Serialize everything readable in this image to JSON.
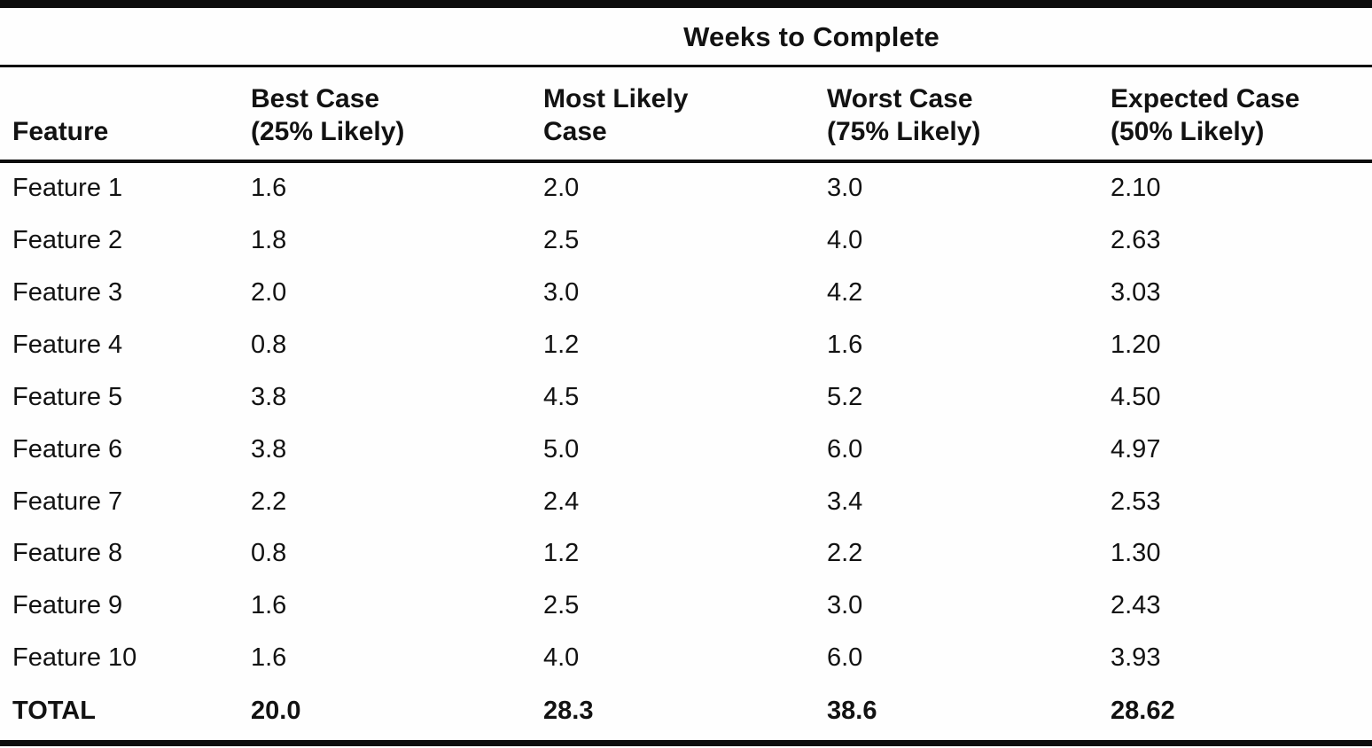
{
  "page": {
    "background_color": "#fefefe",
    "ink_color": "#0d0d0d"
  },
  "table": {
    "title": "Weeks to Complete",
    "headers": {
      "feature": "Feature",
      "best": "Best Case\n(25% Likely)",
      "most_likely": "Most Likely\nCase",
      "worst": "Worst Case\n(75% Likely)",
      "expected": "Expected Case\n(50% Likely)"
    },
    "rows": [
      {
        "label": "Feature 1",
        "best": "1.6",
        "most_likely": "2.0",
        "worst": "3.0",
        "expected": "2.10"
      },
      {
        "label": "Feature 2",
        "best": "1.8",
        "most_likely": "2.5",
        "worst": "4.0",
        "expected": "2.63"
      },
      {
        "label": "Feature 3",
        "best": "2.0",
        "most_likely": "3.0",
        "worst": "4.2",
        "expected": "3.03"
      },
      {
        "label": "Feature 4",
        "best": "0.8",
        "most_likely": "1.2",
        "worst": "1.6",
        "expected": "1.20"
      },
      {
        "label": "Feature 5",
        "best": "3.8",
        "most_likely": "4.5",
        "worst": "5.2",
        "expected": "4.50"
      },
      {
        "label": "Feature 6",
        "best": "3.8",
        "most_likely": "5.0",
        "worst": "6.0",
        "expected": "4.97"
      },
      {
        "label": "Feature 7",
        "best": "2.2",
        "most_likely": "2.4",
        "worst": "3.4",
        "expected": "2.53"
      },
      {
        "label": "Feature 8",
        "best": "0.8",
        "most_likely": "1.2",
        "worst": "2.2",
        "expected": "1.30"
      },
      {
        "label": "Feature 9",
        "best": "1.6",
        "most_likely": "2.5",
        "worst": "3.0",
        "expected": "2.43"
      },
      {
        "label": "Feature 10",
        "best": "1.6",
        "most_likely": "4.0",
        "worst": "6.0",
        "expected": "3.93"
      }
    ],
    "total": {
      "label": "TOTAL",
      "best": "20.0",
      "most_likely": "28.3",
      "worst": "38.6",
      "expected": "28.62"
    }
  },
  "chart_data": {
    "type": "table",
    "title": "Weeks to Complete",
    "columns": [
      "Feature",
      "Best Case (25% Likely)",
      "Most Likely Case",
      "Worst Case (75% Likely)",
      "Expected Case (50% Likely)"
    ],
    "rows": [
      [
        "Feature 1",
        1.6,
        2.0,
        3.0,
        2.1
      ],
      [
        "Feature 2",
        1.8,
        2.5,
        4.0,
        2.63
      ],
      [
        "Feature 3",
        2.0,
        3.0,
        4.2,
        3.03
      ],
      [
        "Feature 4",
        0.8,
        1.2,
        1.6,
        1.2
      ],
      [
        "Feature 5",
        3.8,
        4.5,
        5.2,
        4.5
      ],
      [
        "Feature 6",
        3.8,
        5.0,
        6.0,
        4.97
      ],
      [
        "Feature 7",
        2.2,
        2.4,
        3.4,
        2.53
      ],
      [
        "Feature 8",
        0.8,
        1.2,
        2.2,
        1.3
      ],
      [
        "Feature 9",
        1.6,
        2.5,
        3.0,
        2.43
      ],
      [
        "Feature 10",
        1.6,
        4.0,
        6.0,
        3.93
      ],
      [
        "TOTAL",
        20.0,
        28.3,
        38.6,
        28.62
      ]
    ]
  }
}
